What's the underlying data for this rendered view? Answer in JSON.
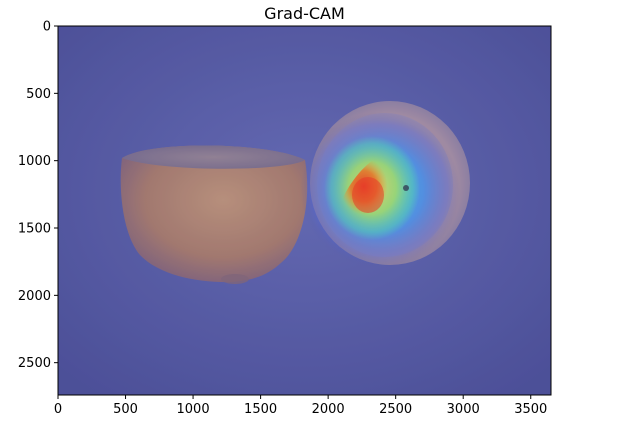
{
  "title": "Grad-CAM",
  "image": {
    "description_semantic": "orange-halves-with-gradcam-heatmap",
    "width_data": 3650,
    "height_data": 2740,
    "overlay_colormap": "jet",
    "background_tint": "#5a5fa8"
  },
  "axes": {
    "x_ticks": [
      {
        "value": 0,
        "label": "0"
      },
      {
        "value": 500,
        "label": "500"
      },
      {
        "value": 1000,
        "label": "1000"
      },
      {
        "value": 1500,
        "label": "1500"
      },
      {
        "value": 2000,
        "label": "2000"
      },
      {
        "value": 2500,
        "label": "2500"
      },
      {
        "value": 3000,
        "label": "3000"
      },
      {
        "value": 3500,
        "label": "3500"
      }
    ],
    "y_ticks": [
      {
        "value": 0,
        "label": "0"
      },
      {
        "value": 500,
        "label": "500"
      },
      {
        "value": 1000,
        "label": "1000"
      },
      {
        "value": 1500,
        "label": "1500"
      },
      {
        "value": 2000,
        "label": "2000"
      },
      {
        "value": 2500,
        "label": "2500"
      }
    ],
    "xlim": [
      0,
      3650
    ],
    "ylim": [
      2740,
      0
    ]
  }
}
